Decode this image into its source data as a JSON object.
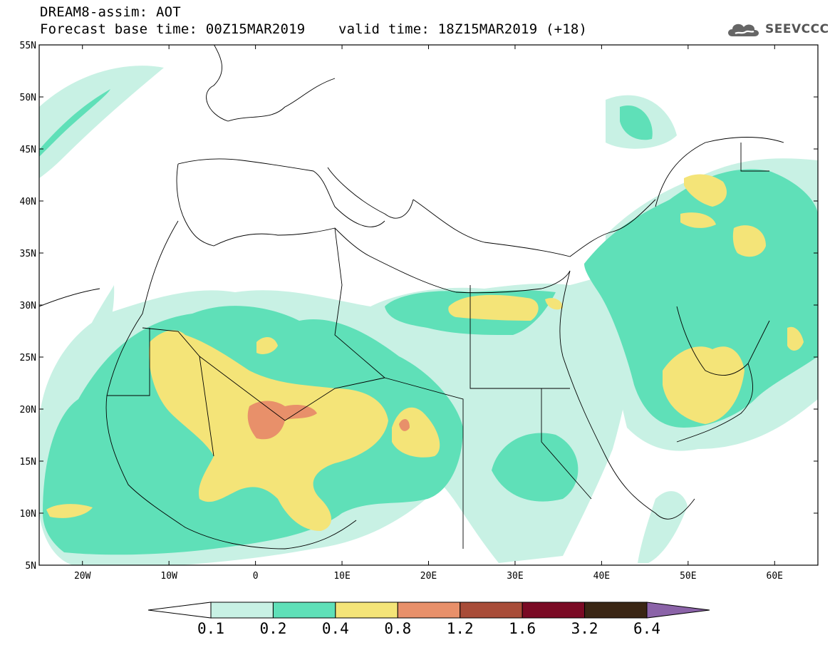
{
  "title": {
    "line1": "DREAM8-assim: AOT",
    "line2": "Forecast base time: 00Z15MAR2019    valid time: 18Z15MAR2019 (+18)"
  },
  "logo": {
    "text": "SEEVCCC",
    "icon": "cloud-icon"
  },
  "axes": {
    "lat_labels": [
      "55N",
      "50N",
      "45N",
      "40N",
      "35N",
      "30N",
      "25N",
      "20N",
      "15N",
      "10N",
      "5N"
    ],
    "lon_labels": [
      "20W",
      "10W",
      "0",
      "10E",
      "20E",
      "30E",
      "40E",
      "50E",
      "60E"
    ],
    "lon_range": [
      -25,
      65
    ],
    "lat_range": [
      5,
      55
    ]
  },
  "colorbar": {
    "labels": [
      "0.1",
      "0.2",
      "0.4",
      "0.8",
      "1.2",
      "1.6",
      "3.2",
      "6.4"
    ],
    "colors": [
      "#ffffff",
      "#c8f1e4",
      "#5fe0b8",
      "#f4e478",
      "#e8906a",
      "#a84c38",
      "#7a0a24",
      "#3a2614",
      "#8b63a8"
    ]
  },
  "fields": {
    "levels": [
      {
        "aot_min": 0.1,
        "color": "#c8f1e4"
      },
      {
        "aot_min": 0.2,
        "color": "#5fe0b8"
      },
      {
        "aot_min": 0.4,
        "color": "#f4e478"
      },
      {
        "aot_min": 0.8,
        "color": "#e8906a"
      }
    ]
  }
}
